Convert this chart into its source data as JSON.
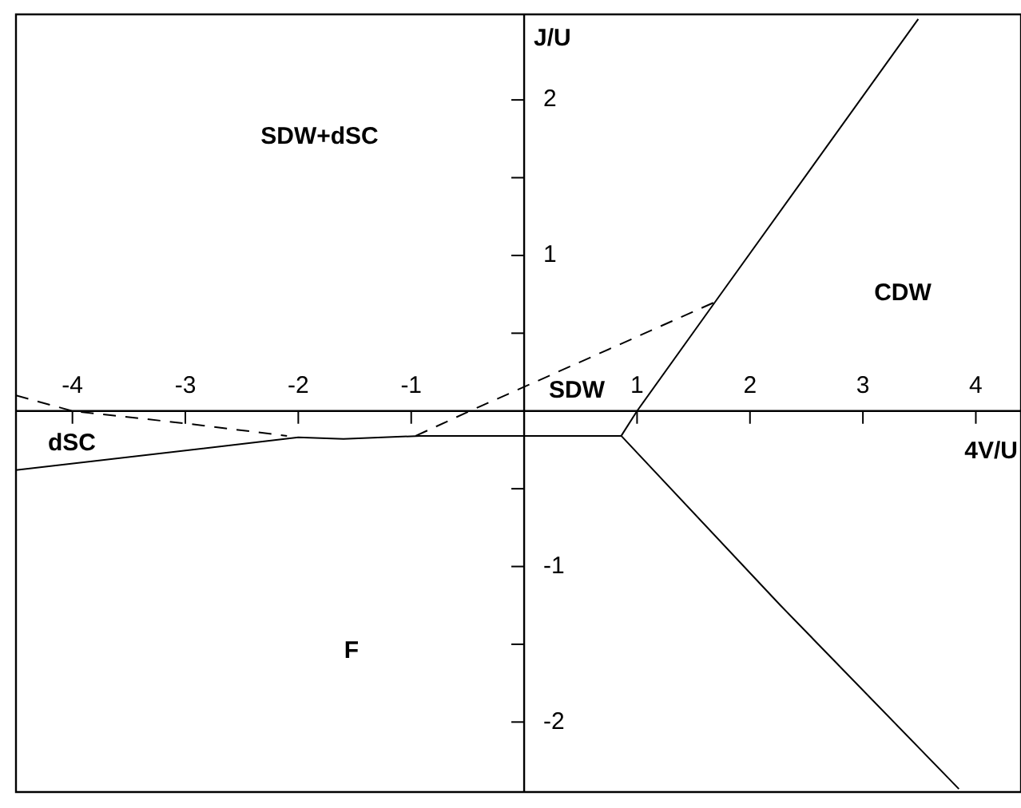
{
  "chart_data": {
    "type": "line",
    "xlabel": "4V/U",
    "ylabel": "J/U",
    "xlim": [
      -4.5,
      4.4
    ],
    "ylim": [
      -2.45,
      2.55
    ],
    "xticks": [
      -4,
      -3,
      -2,
      -1,
      1,
      2,
      3,
      4
    ],
    "yticks": [
      -2,
      {
        "value": -1.5,
        "label": null
      },
      -1,
      {
        "value": -0.5,
        "label": null
      },
      {
        "value": 0.5,
        "label": null
      },
      1,
      {
        "value": 1.5,
        "label": null
      },
      2
    ],
    "legend": false,
    "marker": "none",
    "series": [
      {
        "type": "line",
        "color": "#000000",
        "line_style": "solid",
        "x": [
          -4.5,
          -2,
          -1.6,
          -0.92,
          0.86,
          1.0,
          1.72,
          3.49
        ],
        "values": [
          -0.38,
          -0.17,
          -0.18,
          -0.16,
          -0.16,
          0,
          0.73,
          2.52
        ]
      },
      {
        "type": "line",
        "color": "#000000",
        "line_style": "solid",
        "x": [
          0.86,
          2.27,
          3.85
        ],
        "values": [
          -0.16,
          -1.25,
          -2.43
        ]
      },
      {
        "type": "line",
        "color": "#000000",
        "line_style": "dashed",
        "x": [
          -4.5,
          -4,
          -3,
          -2.1
        ],
        "values": [
          0.1,
          0,
          -0.08,
          -0.16
        ]
      },
      {
        "type": "line",
        "color": "#000000",
        "line_style": "dashed",
        "x": [
          -0.96,
          -0.48,
          1.72
        ],
        "values": [
          -0.16,
          0,
          0.71
        ]
      }
    ],
    "annotations": [
      "SDW+dSC",
      "CDW",
      "SDW",
      "dSC",
      "F"
    ]
  }
}
